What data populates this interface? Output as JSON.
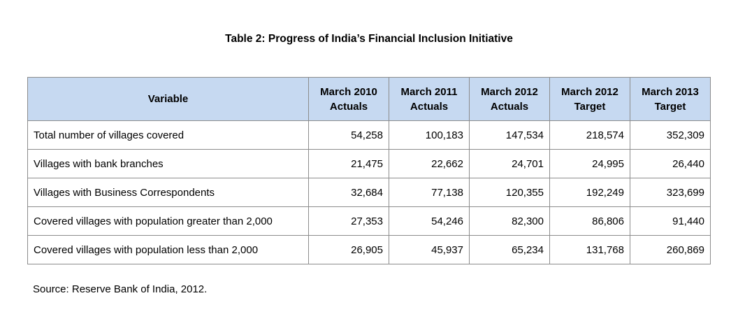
{
  "title": "Table 2: Progress of India’s Financial Inclusion Initiative",
  "table": {
    "headers": [
      {
        "line1": "Variable",
        "line2": ""
      },
      {
        "line1": "March 2010",
        "line2": "Actuals"
      },
      {
        "line1": "March 2011",
        "line2": "Actuals"
      },
      {
        "line1": "March 2012",
        "line2": "Actuals"
      },
      {
        "line1": "March 2012",
        "line2": "Target"
      },
      {
        "line1": "March 2013",
        "line2": "Target"
      }
    ],
    "rows": [
      {
        "label": "Total number of villages covered",
        "values": [
          "54,258",
          "100,183",
          "147,534",
          "218,574",
          "352,309"
        ]
      },
      {
        "label": "Villages with bank branches",
        "values": [
          "21,475",
          "22,662",
          "24,701",
          "24,995",
          "26,440"
        ]
      },
      {
        "label": "Villages with Business Correspondents",
        "values": [
          "32,684",
          "77,138",
          "120,355",
          "192,249",
          "323,699"
        ]
      },
      {
        "label": "Covered villages with population greater than 2,000",
        "values": [
          "27,353",
          "54,246",
          "82,300",
          "86,806",
          "91,440"
        ]
      },
      {
        "label": "Covered villages with population less than 2,000",
        "values": [
          "26,905",
          "45,937",
          "65,234",
          "131,768",
          "260,869"
        ]
      }
    ]
  },
  "source": "Source: Reserve Bank of India, 2012.",
  "colors": {
    "header_bg": "#c6d9f1",
    "border": "#8c8c8c"
  }
}
